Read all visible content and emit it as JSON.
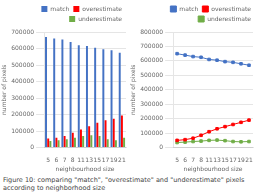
{
  "chart_data": [
    {
      "type": "bar",
      "xlabel": "neighbourhood size",
      "ylabel": "number of pixels",
      "categories": [
        "5",
        "6",
        "7",
        "8",
        "11",
        "13",
        "15",
        "17",
        "19",
        "21"
      ],
      "series": [
        {
          "name": "match",
          "color": "#4472C4",
          "values": [
            670000,
            660000,
            655000,
            640000,
            620000,
            615000,
            605000,
            595000,
            590000,
            575000
          ]
        },
        {
          "name": "overestimate",
          "color": "#FF0000",
          "values": [
            55000,
            60000,
            70000,
            90000,
            110000,
            130000,
            150000,
            165000,
            175000,
            195000
          ]
        },
        {
          "name": "underestimate",
          "color": "#70AD47",
          "values": [
            40000,
            45000,
            50000,
            60000,
            70000,
            75000,
            70000,
            50000,
            45000,
            60000
          ]
        }
      ],
      "ylim": [
        0,
        700000
      ],
      "yticks": [
        0,
        100000,
        200000,
        300000,
        400000,
        500000,
        600000,
        700000
      ],
      "grid": "y",
      "legend": "upper right"
    },
    {
      "type": "line",
      "xlabel": "neighbourhood size",
      "ylabel": "number of pixels",
      "categories": [
        "5",
        "6",
        "7",
        "8",
        "11",
        "13",
        "15",
        "17",
        "19",
        "21"
      ],
      "series": [
        {
          "name": "match",
          "color": "#4472C4",
          "marker": "square",
          "values": [
            650000,
            640000,
            630000,
            625000,
            610000,
            605000,
            595000,
            590000,
            580000,
            570000
          ]
        },
        {
          "name": "overestimate",
          "color": "#FF0000",
          "marker": "square",
          "values": [
            50000,
            55000,
            65000,
            85000,
            110000,
            130000,
            145000,
            160000,
            175000,
            190000
          ]
        },
        {
          "name": "underestimate",
          "color": "#70AD47",
          "marker": "square",
          "values": [
            35000,
            38000,
            42000,
            45000,
            50000,
            52000,
            48000,
            42000,
            40000,
            42000
          ]
        }
      ],
      "ylim": [
        0,
        800000
      ],
      "yticks": [
        0,
        100000,
        200000,
        300000,
        400000,
        500000,
        600000,
        700000,
        800000
      ],
      "grid": "y",
      "legend": "upper right",
      "caption": "Figure 10: comparing \"match\", \"overestimate\" and \"underestimate\" pixels according to neighborhood size"
    }
  ]
}
